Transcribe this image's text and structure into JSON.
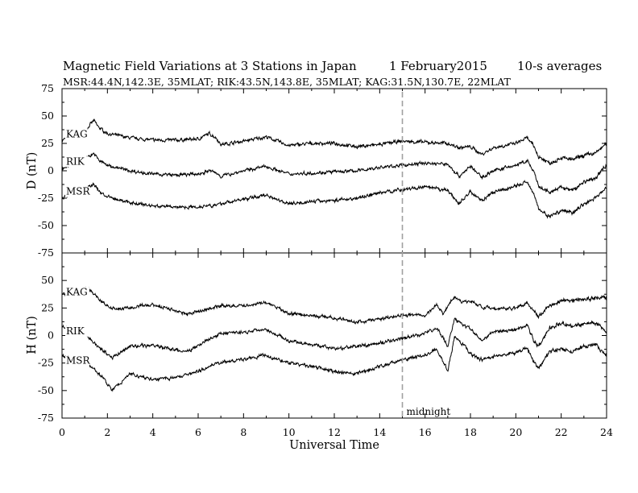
{
  "chart_data": {
    "type": "line",
    "title": "Magnetic Field Variations at 3 Stations in Japan",
    "title_date": "1   February2015",
    "title_avg": "10-s averages",
    "subtitle": "MSR:44.4N,142.3E, 35MLAT;  RIK:43.5N,143.8E, 35MLAT;  KAG:31.5N,130.7E, 22MLAT",
    "xlabel": "Universal Time",
    "xlim": [
      0,
      24
    ],
    "xticks": [
      "0",
      "2",
      "4",
      "6",
      "8",
      "10",
      "12",
      "14",
      "16",
      "18",
      "20",
      "22",
      "24"
    ],
    "midnight_line": {
      "x": 15,
      "label": "midnight"
    },
    "panels": [
      {
        "ylabel": "D (nT)",
        "ylim": [
          -75,
          75
        ],
        "yticks": [
          "75",
          "50",
          "25",
          "0",
          "-25",
          "-50",
          "-75"
        ],
        "series": [
          {
            "name": "KAG",
            "x": [
              0,
              0.5,
              1,
              1.4,
              1.6,
              2,
              3,
              4,
              5,
              6,
              6.5,
              6.8,
              7,
              8,
              9,
              10,
              11,
              12,
              13,
              14,
              15,
              16,
              17,
              17.5,
              18,
              18.5,
              19,
              20,
              20.5,
              20.8,
              21,
              21.5,
              22,
              22.5,
              23,
              23.5,
              24
            ],
            "y": [
              28,
              32,
              36,
              46,
              40,
              34,
              30,
              28,
              28,
              29,
              34,
              30,
              24,
              27,
              31,
              23,
              25,
              25,
              22,
              24,
              27,
              26,
              25,
              21,
              22,
              15,
              21,
              25,
              30,
              22,
              13,
              7,
              12,
              10,
              14,
              16,
              25
            ]
          },
          {
            "name": "RIK",
            "x": [
              0,
              0.5,
              1,
              1.4,
              1.6,
              2,
              3,
              4,
              5,
              6,
              6.5,
              6.8,
              7,
              8,
              9,
              10,
              11,
              12,
              13,
              14,
              15,
              16,
              17,
              17.5,
              18,
              18.5,
              19,
              20,
              20.5,
              20.8,
              21,
              21.5,
              22,
              22.5,
              23,
              23.5,
              24
            ],
            "y": [
              2,
              7,
              11,
              16,
              10,
              5,
              0,
              -3,
              -4,
              -3,
              0,
              -2,
              -5,
              0,
              4,
              -3,
              -2,
              -1,
              0,
              3,
              5,
              7,
              6,
              -5,
              4,
              -6,
              0,
              5,
              9,
              -1,
              -15,
              -20,
              -15,
              -18,
              -10,
              -7,
              6
            ]
          },
          {
            "name": "MSR",
            "x": [
              0,
              0.5,
              1,
              1.4,
              1.6,
              2,
              3,
              4,
              5,
              6,
              6.5,
              6.8,
              7,
              8,
              9,
              10,
              11,
              12,
              13,
              14,
              15,
              16,
              17,
              17.5,
              18,
              18.5,
              19,
              20,
              20.5,
              20.8,
              21,
              21.5,
              22,
              22.5,
              23,
              23.5,
              24
            ],
            "y": [
              -25,
              -20,
              -17,
              -12,
              -18,
              -24,
              -29,
              -32,
              -33,
              -33,
              -31,
              -32,
              -30,
              -26,
              -22,
              -30,
              -28,
              -27,
              -25,
              -20,
              -17,
              -15,
              -18,
              -30,
              -19,
              -27,
              -20,
              -14,
              -10,
              -20,
              -35,
              -42,
              -36,
              -38,
              -30,
              -25,
              -15
            ]
          }
        ]
      },
      {
        "ylabel": "H (nT)",
        "ylim": [
          -75,
          75
        ],
        "yticks": [
          "75",
          "50",
          "25",
          "0",
          "-25",
          "-50",
          "-75"
        ],
        "series": [
          {
            "name": "KAG",
            "x": [
              0,
              0.5,
              1,
              1.2,
              1.8,
              2.2,
              3,
              4,
              5,
              5.5,
              6,
              7,
              8,
              9,
              10,
              11,
              12,
              13,
              14,
              15,
              16,
              16.5,
              16.8,
              17,
              17.3,
              17.7,
              18,
              18.5,
              19,
              20,
              20.5,
              20.8,
              21,
              21.5,
              22,
              22.5,
              23,
              23.5,
              24
            ],
            "y": [
              37,
              38,
              42,
              42,
              30,
              24,
              25,
              28,
              23,
              19,
              22,
              27,
              27,
              30,
              20,
              18,
              16,
              12,
              15,
              19,
              18,
              28,
              20,
              27,
              35,
              30,
              32,
              26,
              24,
              25,
              30,
              22,
              18,
              27,
              32,
              32,
              33,
              34,
              35
            ]
          },
          {
            "name": "RIK",
            "x": [
              0,
              0.5,
              1,
              1.2,
              1.8,
              2.2,
              3,
              4,
              5,
              5.5,
              6,
              7,
              8,
              9,
              10,
              11,
              12,
              13,
              14,
              15,
              16,
              16.5,
              16.8,
              17,
              17.3,
              17.7,
              18,
              18.5,
              19,
              20,
              20.5,
              20.8,
              21,
              21.5,
              22,
              22.5,
              23,
              23.5,
              24
            ],
            "y": [
              8,
              5,
              3,
              -2,
              -14,
              -20,
              -10,
              -9,
              -13,
              -15,
              -9,
              2,
              3,
              6,
              -5,
              -8,
              -12,
              -10,
              -7,
              -3,
              2,
              7,
              -2,
              -10,
              15,
              9,
              6,
              -4,
              3,
              5,
              10,
              -5,
              -10,
              7,
              12,
              8,
              11,
              12,
              3
            ]
          },
          {
            "name": "MSR",
            "x": [
              0,
              0.5,
              1,
              1.2,
              1.8,
              2.2,
              3,
              4,
              5,
              5.5,
              6,
              7,
              8,
              9,
              10,
              11,
              12,
              13,
              14,
              15,
              16,
              16.5,
              16.8,
              17,
              17.3,
              17.7,
              18,
              18.5,
              19,
              20,
              20.5,
              20.8,
              21,
              21.5,
              22,
              22.5,
              23,
              23.5,
              24
            ],
            "y": [
              -19,
              -22,
              -24,
              -27,
              -38,
              -50,
              -35,
              -40,
              -38,
              -36,
              -32,
              -24,
              -22,
              -18,
              -25,
              -28,
              -33,
              -35,
              -28,
              -22,
              -18,
              -12,
              -24,
              -32,
              -2,
              -8,
              -17,
              -22,
              -19,
              -16,
              -11,
              -24,
              -30,
              -14,
              -12,
              -14,
              -10,
              -8,
              -18
            ]
          }
        ]
      }
    ]
  }
}
